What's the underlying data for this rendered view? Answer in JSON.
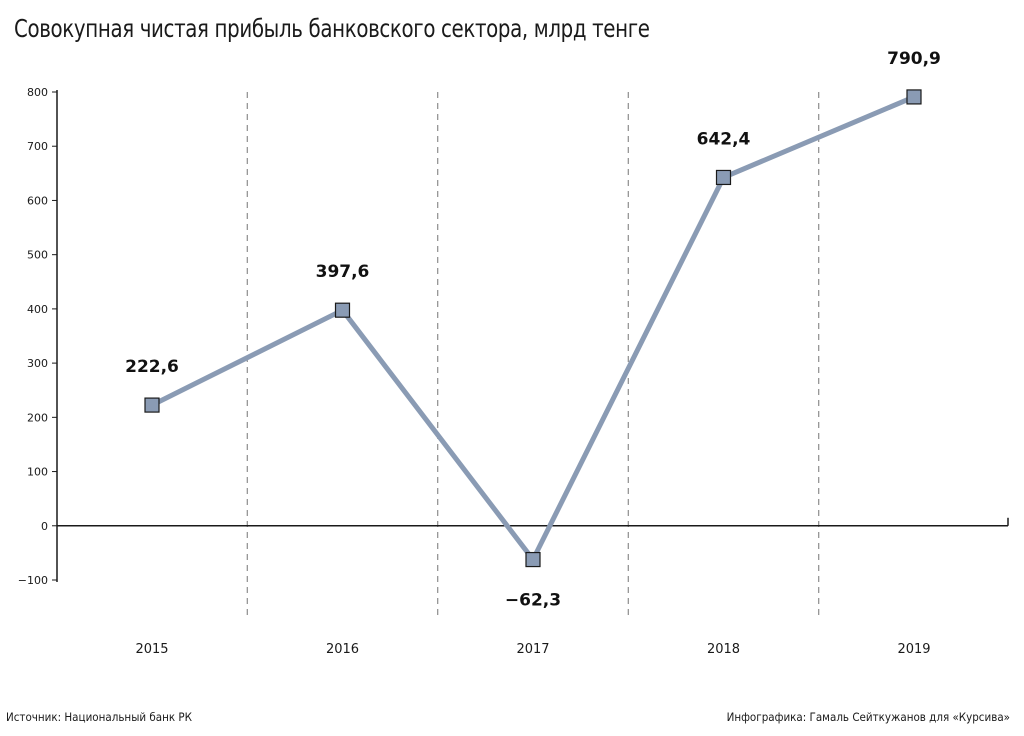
{
  "title": "Совокупная чистая прибыль банковского сектора, млрд тенге",
  "footer": {
    "source": "Источник: Национальный банк РК",
    "credit": "Инфографика: Гамаль Сейткужанов для «Курсива»"
  },
  "colors": {
    "line": "#8a9bb4",
    "marker_fill": "#8a9bb4",
    "marker_stroke": "#1a1a1a",
    "axis": "#1a1a1a",
    "grid": "#777777"
  },
  "chart_data": {
    "type": "line",
    "categories": [
      "2015",
      "2016",
      "2017",
      "2018",
      "2019"
    ],
    "values": [
      222.6,
      397.6,
      -62.3,
      642.4,
      790.9
    ],
    "data_labels": [
      "222,6",
      "397,6",
      "−62,3",
      "642,4",
      "790,9"
    ],
    "ylim": [
      -100,
      800
    ],
    "yticks": [
      800,
      700,
      600,
      500,
      400,
      300,
      200,
      100,
      0,
      -100
    ],
    "ytick_labels": [
      "800",
      "700",
      "600",
      "500",
      "400",
      "300",
      "200",
      "100",
      "0",
      "−100"
    ],
    "grid": "vertical dashed separators between years",
    "legend": "none"
  }
}
